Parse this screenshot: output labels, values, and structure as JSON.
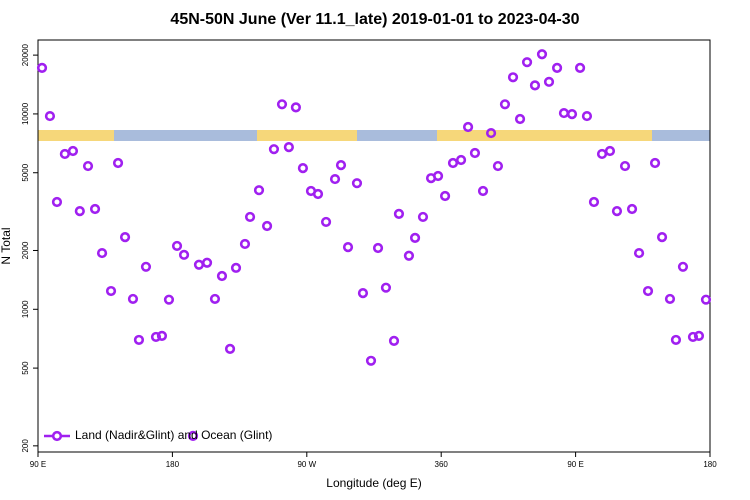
{
  "chart_data": {
    "type": "scatter",
    "title": "45N-50N June (Ver 11.1_late)   2019-01-01 to 2023-04-30",
    "x_label": "Longitude (deg E)",
    "y_label": "N Total",
    "log_y": true,
    "legend": "bottomleft",
    "xlim": [
      90,
      540
    ],
    "ylim": [
      186,
      23900
    ],
    "xticks": [
      {
        "value": 90,
        "label": "90 E"
      },
      180,
      {
        "value": 270,
        "label": "90 W"
      },
      360,
      {
        "value": 450,
        "label": "90 E"
      },
      {
        "value": 540,
        "label": "180"
      }
    ],
    "yticks": [
      200,
      500,
      1000,
      2000,
      5000,
      10000,
      20000
    ],
    "series": [
      {
        "name": "Land (Nadir&Glint) and Ocean (Glint)",
        "color": "#a020f0",
        "x": [
          92.7,
          98,
          102.7,
          108,
          113.4,
          118,
          123.5,
          128.2,
          132.9,
          138.9,
          143.6,
          148.3,
          153.6,
          157.6,
          162.3,
          169,
          173,
          177.7,
          183.1,
          187.8,
          193.8,
          197.8,
          203.2,
          208.5,
          213.2,
          218.6,
          222.6,
          228.6,
          232,
          238,
          243.4,
          248,
          253.4,
          258,
          262.7,
          267.4,
          272.8,
          277.5,
          282.9,
          288.9,
          292.9,
          297.6,
          303.6,
          307.6,
          313,
          317.7,
          323,
          328.4,
          331.7,
          338.4,
          342.5,
          347.8,
          353.2,
          357.9,
          362.6,
          367.9,
          373.3,
          378,
          382.6,
          388,
          393.4,
          398,
          402.7,
          408.1,
          412.8,
          417.5,
          422.8,
          427.5,
          432.2,
          437.6,
          442.2,
          447.6,
          453,
          457.6,
          462.3,
          467.7,
          473,
          477.7,
          483.1,
          487.8,
          492.5,
          498.5,
          503.2,
          507.9,
          513.2,
          517.2,
          521.9,
          528.6,
          532.6,
          537.3
        ],
        "values": [
          17200,
          9750,
          3540,
          6240,
          6460,
          3180,
          5410,
          3260,
          1940,
          1240,
          5610,
          2340,
          1130,
          697,
          1650,
          722,
          731,
          1120,
          2110,
          1900,
          225,
          1690,
          1730,
          1130,
          1480,
          627,
          1630,
          2160,
          2970,
          4070,
          2670,
          6600,
          11200,
          6760,
          10800,
          5280,
          4030,
          3890,
          2800,
          4640,
          5470,
          2080,
          4420,
          1210,
          545,
          2060,
          1290,
          689,
          3080,
          1880,
          2320,
          2970,
          4690,
          4810,
          3800,
          5610,
          5810,
          8570,
          6310,
          4030,
          7980,
          5410,
          11200,
          15400,
          9420,
          18400,
          14000,
          20200,
          14600,
          17200,
          10100,
          9980,
          17200,
          9750,
          3540,
          6240,
          6460,
          3180,
          5410,
          3260,
          1940,
          1240,
          5610,
          2340,
          1130,
          697,
          1650,
          722,
          731,
          1120
        ]
      }
    ]
  }
}
